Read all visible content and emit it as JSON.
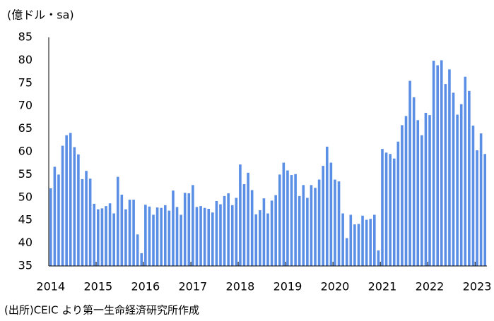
{
  "chart_data": {
    "type": "bar",
    "y_axis_label": "(億ドル・sa)",
    "source": "(出所)CEIC より第一生命経済研究所作成",
    "categories": [
      "2014",
      null,
      null,
      null,
      null,
      null,
      null,
      null,
      null,
      null,
      null,
      null,
      "2015",
      null,
      null,
      null,
      null,
      null,
      null,
      null,
      null,
      null,
      null,
      null,
      "2016",
      null,
      null,
      null,
      null,
      null,
      null,
      null,
      null,
      null,
      null,
      null,
      "2017",
      null,
      null,
      null,
      null,
      null,
      null,
      null,
      null,
      null,
      null,
      null,
      "2018",
      null,
      null,
      null,
      null,
      null,
      null,
      null,
      null,
      null,
      null,
      null,
      "2019",
      null,
      null,
      null,
      null,
      null,
      null,
      null,
      null,
      null,
      null,
      null,
      "2020",
      null,
      null,
      null,
      null,
      null,
      null,
      null,
      null,
      null,
      null,
      null,
      "2021",
      null,
      null,
      null,
      null,
      null,
      null,
      null,
      null,
      null,
      null,
      null,
      "2022",
      null,
      null,
      null,
      null,
      null,
      null,
      null,
      null,
      null,
      null,
      null,
      "2023",
      null,
      null
    ],
    "values": [
      52,
      56.7,
      55,
      61.3,
      63.6,
      64.1,
      61,
      59.4,
      54,
      55.8,
      54.1,
      48.6,
      47.4,
      47.6,
      48.1,
      48.7,
      46.5,
      54.5,
      50.6,
      47.4,
      49.5,
      49.5,
      41.9,
      37.8,
      48.4,
      48,
      46.2,
      47.8,
      47.7,
      48.3,
      47.1,
      51.5,
      47.9,
      46.2,
      51,
      50.9,
      52.7,
      47.9,
      48.1,
      47.7,
      47.5,
      46.7,
      49.2,
      48.5,
      50.3,
      50.9,
      48.3,
      49.9,
      57.2,
      52.9,
      55.4,
      51.6,
      46.3,
      47.2,
      49.8,
      46.5,
      49.3,
      50.5,
      55,
      57.6,
      55.9,
      54.9,
      55.1,
      50.3,
      52.7,
      49.9,
      52.7,
      52.1,
      53.9,
      56.9,
      61.1,
      57.6,
      53.9,
      53.5,
      46.5,
      41.1,
      46.2,
      44.1,
      44.2,
      46,
      45.1,
      45.3,
      46.2,
      38.4,
      60.6,
      59.8,
      59.5,
      58.5,
      62.2,
      65.8,
      67.8,
      75.5,
      71.9,
      66.9,
      63.6,
      68.5,
      68,
      79.9,
      78.9,
      80,
      74.8,
      78,
      72.9,
      68.1,
      70.4,
      76.4,
      73.3,
      65.7,
      60.3,
      64,
      59.5
    ],
    "color": "#5b8fe6",
    "ylim": [
      35,
      85
    ],
    "yticks": [
      35,
      40,
      45,
      50,
      55,
      60,
      65,
      70,
      75,
      80,
      85
    ],
    "grid": false
  }
}
